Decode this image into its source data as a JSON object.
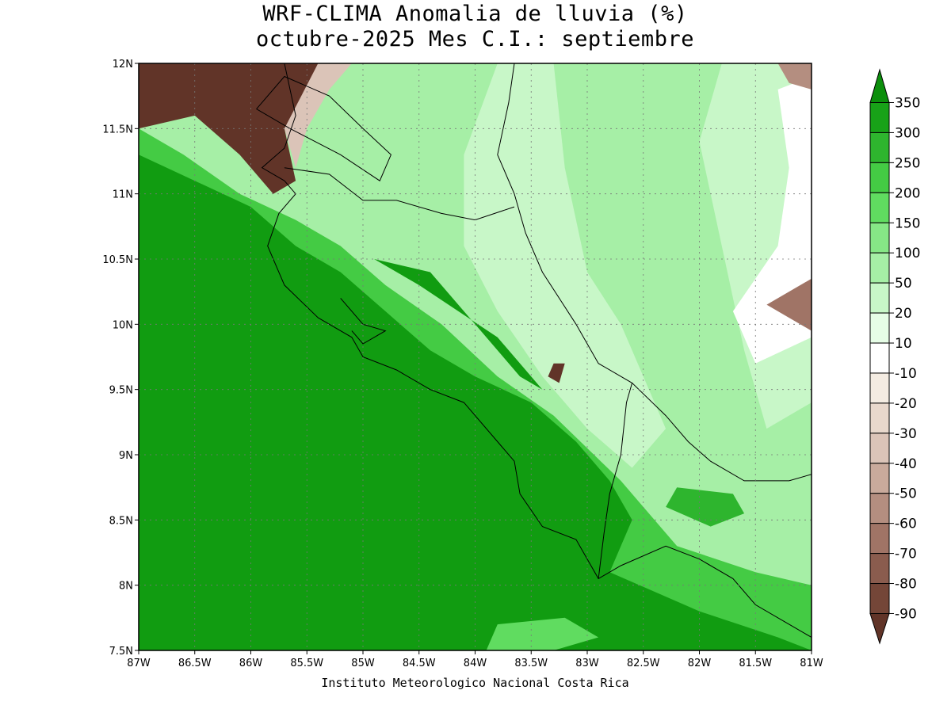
{
  "header": {
    "title_line1": "WRF-CLIMA Anomalia de lluvia (%)",
    "title_line2": "octubre-2025 Mes C.I.: septiembre"
  },
  "footer": {
    "credit": "Instituto Meteorologico Nacional Costa Rica"
  },
  "map": {
    "lon_range": [
      -87,
      -81
    ],
    "lat_range": [
      7.5,
      12
    ],
    "lat_ticks": [
      {
        "value": 12,
        "label": "12N"
      },
      {
        "value": 11.5,
        "label": "11.5N"
      },
      {
        "value": 11,
        "label": "11N"
      },
      {
        "value": 10.5,
        "label": "10.5N"
      },
      {
        "value": 10,
        "label": "10N"
      },
      {
        "value": 9.5,
        "label": "9.5N"
      },
      {
        "value": 9,
        "label": "9N"
      },
      {
        "value": 8.5,
        "label": "8.5N"
      },
      {
        "value": 8,
        "label": "8N"
      },
      {
        "value": 7.5,
        "label": "7.5N"
      }
    ],
    "lon_ticks": [
      {
        "value": -87,
        "label": "87W"
      },
      {
        "value": -86.5,
        "label": "86.5W"
      },
      {
        "value": -86,
        "label": "86W"
      },
      {
        "value": -85.5,
        "label": "85.5W"
      },
      {
        "value": -85,
        "label": "85W"
      },
      {
        "value": -84.5,
        "label": "84.5W"
      },
      {
        "value": -84,
        "label": "84W"
      },
      {
        "value": -83.5,
        "label": "83.5W"
      },
      {
        "value": -83,
        "label": "83W"
      },
      {
        "value": -82.5,
        "label": "82.5W"
      },
      {
        "value": -82,
        "label": "82W"
      },
      {
        "value": -81.5,
        "label": "81.5W"
      },
      {
        "value": -81,
        "label": "81W"
      }
    ],
    "grid": true
  },
  "colorbar": {
    "labels": [
      "350",
      "300",
      "250",
      "200",
      "150",
      "100",
      "50",
      "20",
      "10",
      "-10",
      "-20",
      "-30",
      "-40",
      "-50",
      "-60",
      "-70",
      "-80",
      "-90"
    ],
    "colors": [
      "#0c8f0c",
      "#18a218",
      "#2eb52e",
      "#44cb44",
      "#60dc60",
      "#86e786",
      "#a6efa6",
      "#c8f7c8",
      "#e6fde6",
      "#ffffff",
      "#f4ece2",
      "#e8d8cc",
      "#dbc4b8",
      "#c9aa9c",
      "#b48e80",
      "#a07466",
      "#8a5c4e",
      "#744638",
      "#613428"
    ]
  },
  "regions": [
    {
      "name": "caribbean-light-green",
      "color": "#a6efa6",
      "lonlat": [
        [
          -84.9,
          12
        ],
        [
          -81,
          12
        ],
        [
          -81,
          7.5
        ],
        [
          -82.2,
          7.5
        ],
        [
          -82.8,
          8.4
        ],
        [
          -83.3,
          9.2
        ],
        [
          -83.8,
          9.5
        ],
        [
          -84.3,
          10.1
        ],
        [
          -84.7,
          10.4
        ],
        [
          -85.2,
          10.8
        ],
        [
          -85.4,
          11.0
        ],
        [
          -85.2,
          11.3
        ]
      ]
    },
    {
      "name": "caribbean-pale-band",
      "color": "#c8f7c8",
      "lonlat": [
        [
          -83.8,
          12
        ],
        [
          -83.3,
          12
        ],
        [
          -83.2,
          11.2
        ],
        [
          -83.0,
          10.4
        ],
        [
          -82.7,
          10.0
        ],
        [
          -82.3,
          9.2
        ],
        [
          -82.6,
          8.9
        ],
        [
          -83.0,
          9.2
        ],
        [
          -83.4,
          9.6
        ],
        [
          -83.8,
          10.1
        ],
        [
          -84.1,
          10.6
        ],
        [
          -84.1,
          11.3
        ]
      ]
    },
    {
      "name": "east-pale-zone",
      "color": "#c8f7c8",
      "lonlat": [
        [
          -81.8,
          12
        ],
        [
          -81,
          12
        ],
        [
          -81,
          9.4
        ],
        [
          -81.4,
          9.2
        ],
        [
          -81.6,
          9.8
        ],
        [
          -81.8,
          10.6
        ],
        [
          -82.0,
          11.4
        ]
      ]
    },
    {
      "name": "east-white-zone",
      "color": "#ffffff",
      "lonlat": [
        [
          -81.3,
          11.8
        ],
        [
          -81,
          11.9
        ],
        [
          -81,
          9.9
        ],
        [
          -81.5,
          9.7
        ],
        [
          -81.7,
          10.1
        ],
        [
          -81.3,
          10.6
        ],
        [
          -81.2,
          11.2
        ]
      ]
    },
    {
      "name": "pacific-mid-green",
      "color": "#44cb44",
      "lonlat": [
        [
          -87,
          11.5
        ],
        [
          -86.6,
          11.3
        ],
        [
          -86.1,
          11.0
        ],
        [
          -85.6,
          10.8
        ],
        [
          -85.2,
          10.6
        ],
        [
          -84.8,
          10.3
        ],
        [
          -84.3,
          10.0
        ],
        [
          -83.8,
          9.6
        ],
        [
          -83.3,
          9.3
        ],
        [
          -82.7,
          8.8
        ],
        [
          -82.2,
          8.3
        ],
        [
          -81.5,
          8.1
        ],
        [
          -81,
          8.0
        ],
        [
          -81,
          7.5
        ],
        [
          -87,
          7.5
        ]
      ]
    },
    {
      "name": "pacific-dark-green",
      "color": "#119c11",
      "lonlat": [
        [
          -87,
          11.3
        ],
        [
          -86.5,
          11.1
        ],
        [
          -86.0,
          10.9
        ],
        [
          -85.6,
          10.6
        ],
        [
          -85.2,
          10.4
        ],
        [
          -84.8,
          10.1
        ],
        [
          -84.4,
          9.8
        ],
        [
          -84.0,
          9.6
        ],
        [
          -83.5,
          9.4
        ],
        [
          -83.1,
          9.1
        ],
        [
          -82.8,
          8.8
        ],
        [
          -82.6,
          8.5
        ],
        [
          -82.8,
          8.1
        ],
        [
          -82.0,
          7.8
        ],
        [
          -81.3,
          7.6
        ],
        [
          -81,
          7.5
        ],
        [
          -87,
          7.5
        ]
      ]
    },
    {
      "name": "inland-dark-green-patch",
      "color": "#119c11",
      "lonlat": [
        [
          -84.9,
          10.5
        ],
        [
          -84.4,
          10.4
        ],
        [
          -84.0,
          10.0
        ],
        [
          -83.6,
          9.6
        ],
        [
          -83.4,
          9.5
        ],
        [
          -83.8,
          9.9
        ],
        [
          -84.5,
          10.3
        ]
      ]
    },
    {
      "name": "east-green-blob",
      "color": "#2eb52e",
      "lonlat": [
        [
          -82.2,
          8.75
        ],
        [
          -81.7,
          8.7
        ],
        [
          -81.6,
          8.55
        ],
        [
          -81.9,
          8.45
        ],
        [
          -82.3,
          8.6
        ]
      ]
    },
    {
      "name": "south-light-blob",
      "color": "#60dc60",
      "lonlat": [
        [
          -83.8,
          7.7
        ],
        [
          -83.2,
          7.75
        ],
        [
          -82.9,
          7.6
        ],
        [
          -83.3,
          7.5
        ],
        [
          -83.9,
          7.5
        ]
      ]
    },
    {
      "name": "nw-dry-zone",
      "color": "#613428",
      "lonlat": [
        [
          -87,
          12
        ],
        [
          -85.4,
          12
        ],
        [
          -85.5,
          11.8
        ],
        [
          -85.7,
          11.5
        ],
        [
          -85.6,
          11.1
        ],
        [
          -85.8,
          11.0
        ],
        [
          -86.1,
          11.3
        ],
        [
          -86.5,
          11.6
        ],
        [
          -87,
          11.5
        ]
      ]
    },
    {
      "name": "nw-dry-edge",
      "color": "#dbc4b8",
      "lonlat": [
        [
          -85.4,
          12
        ],
        [
          -85.1,
          12
        ],
        [
          -85.3,
          11.8
        ],
        [
          -85.5,
          11.5
        ],
        [
          -85.6,
          11.2
        ],
        [
          -85.7,
          11.5
        ]
      ]
    },
    {
      "name": "ne-dry-corner",
      "color": "#b48e80",
      "lonlat": [
        [
          -81.3,
          12
        ],
        [
          -81,
          12
        ],
        [
          -81,
          11.8
        ],
        [
          -81.2,
          11.85
        ]
      ]
    },
    {
      "name": "east-dry-spot",
      "color": "#a07466",
      "lonlat": [
        [
          -81.4,
          10.15
        ],
        [
          -81.1,
          10.3
        ],
        [
          -81,
          10.35
        ],
        [
          -81,
          9.95
        ],
        [
          -81.2,
          10.05
        ]
      ]
    },
    {
      "name": "inland-dry-spot",
      "color": "#613428",
      "lonlat": [
        [
          -83.3,
          9.7
        ],
        [
          -83.2,
          9.7
        ],
        [
          -83.25,
          9.55
        ],
        [
          -83.35,
          9.6
        ]
      ]
    }
  ],
  "coastlines": [
    {
      "name": "pacific-coast",
      "lonlat": [
        [
          -85.7,
          12
        ],
        [
          -85.6,
          11.6
        ],
        [
          -85.7,
          11.35
        ],
        [
          -85.9,
          11.2
        ],
        [
          -85.7,
          11.1
        ],
        [
          -85.6,
          11.0
        ],
        [
          -85.75,
          10.85
        ],
        [
          -85.85,
          10.6
        ],
        [
          -85.7,
          10.3
        ],
        [
          -85.4,
          10.05
        ],
        [
          -85.1,
          9.9
        ],
        [
          -85.0,
          9.75
        ],
        [
          -84.7,
          9.65
        ],
        [
          -84.4,
          9.5
        ],
        [
          -84.1,
          9.4
        ],
        [
          -83.8,
          9.1
        ],
        [
          -83.65,
          8.95
        ],
        [
          -83.6,
          8.7
        ],
        [
          -83.4,
          8.45
        ],
        [
          -83.1,
          8.35
        ],
        [
          -83.0,
          8.2
        ],
        [
          -82.9,
          8.05
        ],
        [
          -82.7,
          8.15
        ],
        [
          -82.3,
          8.3
        ],
        [
          -82.0,
          8.2
        ],
        [
          -81.7,
          8.05
        ],
        [
          -81.5,
          7.85
        ],
        [
          -81.2,
          7.7
        ],
        [
          -81,
          7.6
        ]
      ]
    },
    {
      "name": "caribbean-coast",
      "lonlat": [
        [
          -83.65,
          12
        ],
        [
          -83.7,
          11.7
        ],
        [
          -83.8,
          11.3
        ],
        [
          -83.65,
          11.0
        ],
        [
          -83.55,
          10.7
        ],
        [
          -83.4,
          10.4
        ],
        [
          -83.1,
          10.0
        ],
        [
          -82.9,
          9.7
        ],
        [
          -82.6,
          9.55
        ],
        [
          -82.3,
          9.3
        ],
        [
          -82.1,
          9.1
        ],
        [
          -81.9,
          8.95
        ],
        [
          -81.6,
          8.8
        ],
        [
          -81.2,
          8.8
        ],
        [
          -81,
          8.85
        ]
      ]
    },
    {
      "name": "nicaragua-border",
      "lonlat": [
        [
          -85.7,
          11.2
        ],
        [
          -85.3,
          11.15
        ],
        [
          -85.0,
          10.95
        ],
        [
          -84.7,
          10.95
        ],
        [
          -84.3,
          10.85
        ],
        [
          -84.0,
          10.8
        ],
        [
          -83.65,
          10.9
        ]
      ]
    },
    {
      "name": "lake-nicaragua",
      "lonlat": [
        [
          -85.95,
          11.65
        ],
        [
          -85.65,
          11.5
        ],
        [
          -85.2,
          11.3
        ],
        [
          -84.85,
          11.1
        ],
        [
          -84.75,
          11.3
        ],
        [
          -85.0,
          11.5
        ],
        [
          -85.3,
          11.75
        ],
        [
          -85.7,
          11.9
        ],
        [
          -85.95,
          11.65
        ]
      ]
    },
    {
      "name": "panama-border",
      "lonlat": [
        [
          -82.9,
          8.05
        ],
        [
          -82.85,
          8.4
        ],
        [
          -82.8,
          8.7
        ],
        [
          -82.7,
          9.0
        ],
        [
          -82.65,
          9.4
        ],
        [
          -82.6,
          9.55
        ]
      ]
    },
    {
      "name": "nicoya-gulf",
      "lonlat": [
        [
          -85.2,
          10.2
        ],
        [
          -85.0,
          10.0
        ],
        [
          -84.8,
          9.95
        ],
        [
          -85.0,
          9.85
        ],
        [
          -85.1,
          9.95
        ]
      ]
    }
  ]
}
